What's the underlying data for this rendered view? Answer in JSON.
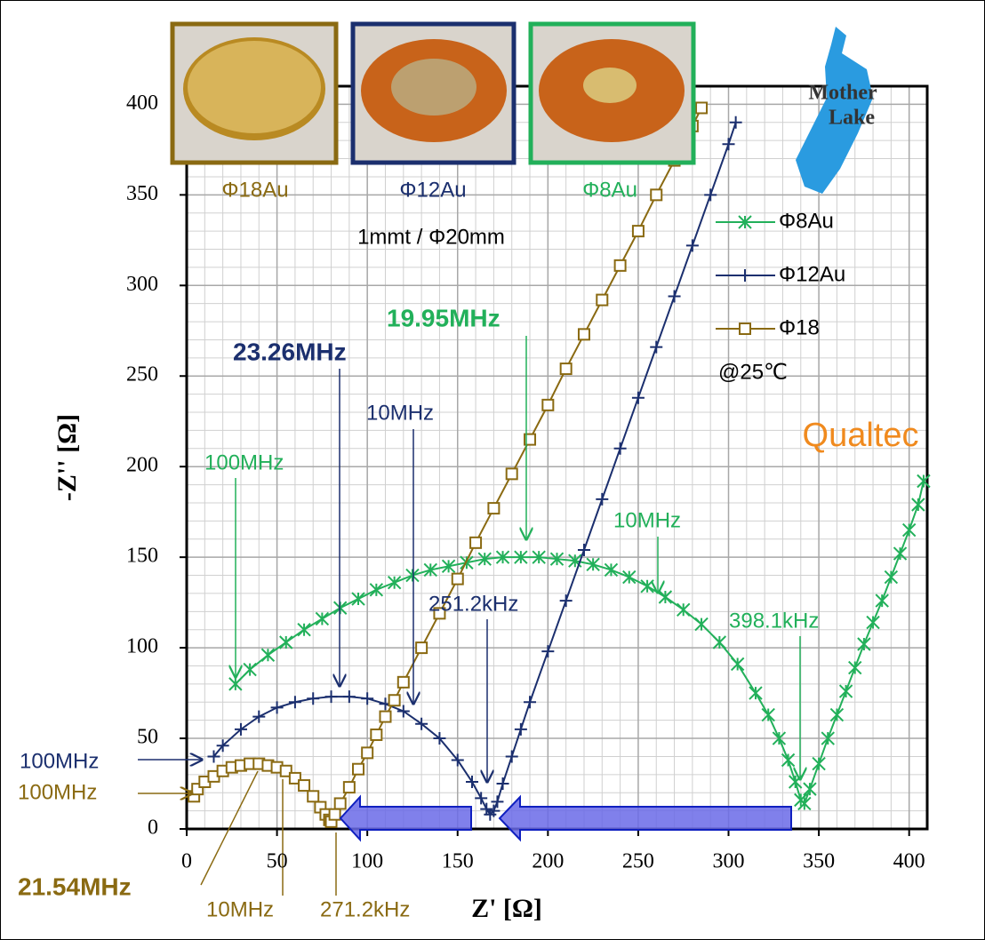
{
  "chart_data": {
    "type": "scatter",
    "x_label": "Z' [Ω]",
    "y_label": "-Z'' [Ω]",
    "xlim": [
      0,
      410
    ],
    "ylim": [
      0,
      410
    ],
    "xticks": [
      0,
      50,
      100,
      150,
      200,
      250,
      300,
      350,
      400
    ],
    "yticks": [
      0,
      50,
      100,
      150,
      200,
      250,
      300,
      350,
      400
    ],
    "grid": true,
    "minor_grid": true,
    "legend": "upper right",
    "series": [
      {
        "name": "Φ8Au",
        "color": "#22b05a",
        "marker": "asterisk",
        "x": [
          27,
          35,
          45,
          55,
          65,
          75,
          85,
          95,
          105,
          115,
          125,
          135,
          145,
          155,
          165,
          175,
          185,
          195,
          205,
          215,
          225,
          235,
          245,
          255,
          265,
          275,
          285,
          295,
          305,
          315,
          322,
          328,
          333,
          337,
          340,
          342,
          345,
          350,
          355,
          360,
          365,
          370,
          375,
          380,
          385,
          390,
          395,
          400,
          405,
          408
        ],
        "values": [
          80,
          88,
          96,
          103,
          110,
          116,
          122,
          127,
          132,
          136,
          140,
          143,
          145,
          147,
          149,
          150,
          150,
          150,
          149,
          148,
          146,
          143,
          139,
          134,
          128,
          121,
          113,
          103,
          91,
          75,
          63,
          50,
          38,
          26,
          16,
          14,
          22,
          36,
          50,
          63,
          76,
          89,
          102,
          114,
          126,
          139,
          152,
          165,
          179,
          192
        ]
      },
      {
        "name": "Φ12Au",
        "color": "#1b2f6e",
        "marker": "plus",
        "x": [
          15,
          20,
          30,
          40,
          50,
          60,
          70,
          80,
          90,
          100,
          110,
          120,
          130,
          140,
          150,
          158,
          163,
          166,
          168,
          170,
          172,
          175,
          180,
          185,
          190,
          200,
          210,
          220,
          230,
          240,
          250,
          260,
          270,
          280,
          290,
          300,
          304
        ],
        "values": [
          40,
          46,
          55,
          62,
          67,
          70,
          72,
          73,
          73,
          72,
          69,
          65,
          58,
          50,
          38,
          26,
          17,
          11,
          8,
          10,
          15,
          25,
          40,
          55,
          70,
          98,
          126,
          154,
          182,
          210,
          238,
          266,
          294,
          322,
          350,
          378,
          390
        ]
      },
      {
        "name": "Φ18",
        "color": "#8a6a12",
        "marker": "square",
        "x": [
          4,
          6,
          10,
          15,
          20,
          25,
          30,
          35,
          40,
          45,
          50,
          55,
          60,
          65,
          70,
          74,
          77,
          79,
          80,
          82,
          85,
          90,
          95,
          100,
          105,
          110,
          115,
          120,
          130,
          140,
          150,
          160,
          170,
          180,
          190,
          200,
          210,
          220,
          230,
          240,
          250,
          260,
          270,
          280,
          285
        ],
        "values": [
          18,
          22,
          26,
          29,
          32,
          34,
          35,
          36,
          36,
          35,
          34,
          32,
          28,
          24,
          18,
          12,
          8,
          5,
          4,
          8,
          14,
          23,
          33,
          42,
          52,
          62,
          71,
          81,
          100,
          119,
          138,
          158,
          177,
          196,
          215,
          234,
          254,
          273,
          292,
          311,
          330,
          350,
          369,
          388,
          398
        ]
      }
    ],
    "annotations": [
      {
        "text": "23.26MHz",
        "color": "#1b2f6e",
        "bold": true
      },
      {
        "text": "10MHz",
        "color": "#1b2f6e"
      },
      {
        "text": "251.2kHz",
        "color": "#1b2f6e"
      },
      {
        "text": "100MHz",
        "color": "#1b2f6e"
      },
      {
        "text": "19.95MHz",
        "color": "#22b05a",
        "bold": true
      },
      {
        "text": "10MHz",
        "color": "#22b05a"
      },
      {
        "text": "398.1kHz",
        "color": "#22b05a"
      },
      {
        "text": "100MHz",
        "color": "#22b05a"
      },
      {
        "text": "100MHz",
        "color": "#8a6a12"
      },
      {
        "text": "21.54MHz",
        "color": "#8a6a12",
        "bold": true
      },
      {
        "text": "10MHz",
        "color": "#8a6a12"
      },
      {
        "text": "271.2kHz",
        "color": "#8a6a12"
      }
    ],
    "sample_labels": [
      "Φ18Au",
      "Φ12Au",
      "Φ8Au"
    ],
    "note": "1mmt / Φ20mm",
    "condition": "@25℃",
    "logo_text": [
      "Mother",
      "Lake"
    ],
    "brand": "Qualtec"
  }
}
